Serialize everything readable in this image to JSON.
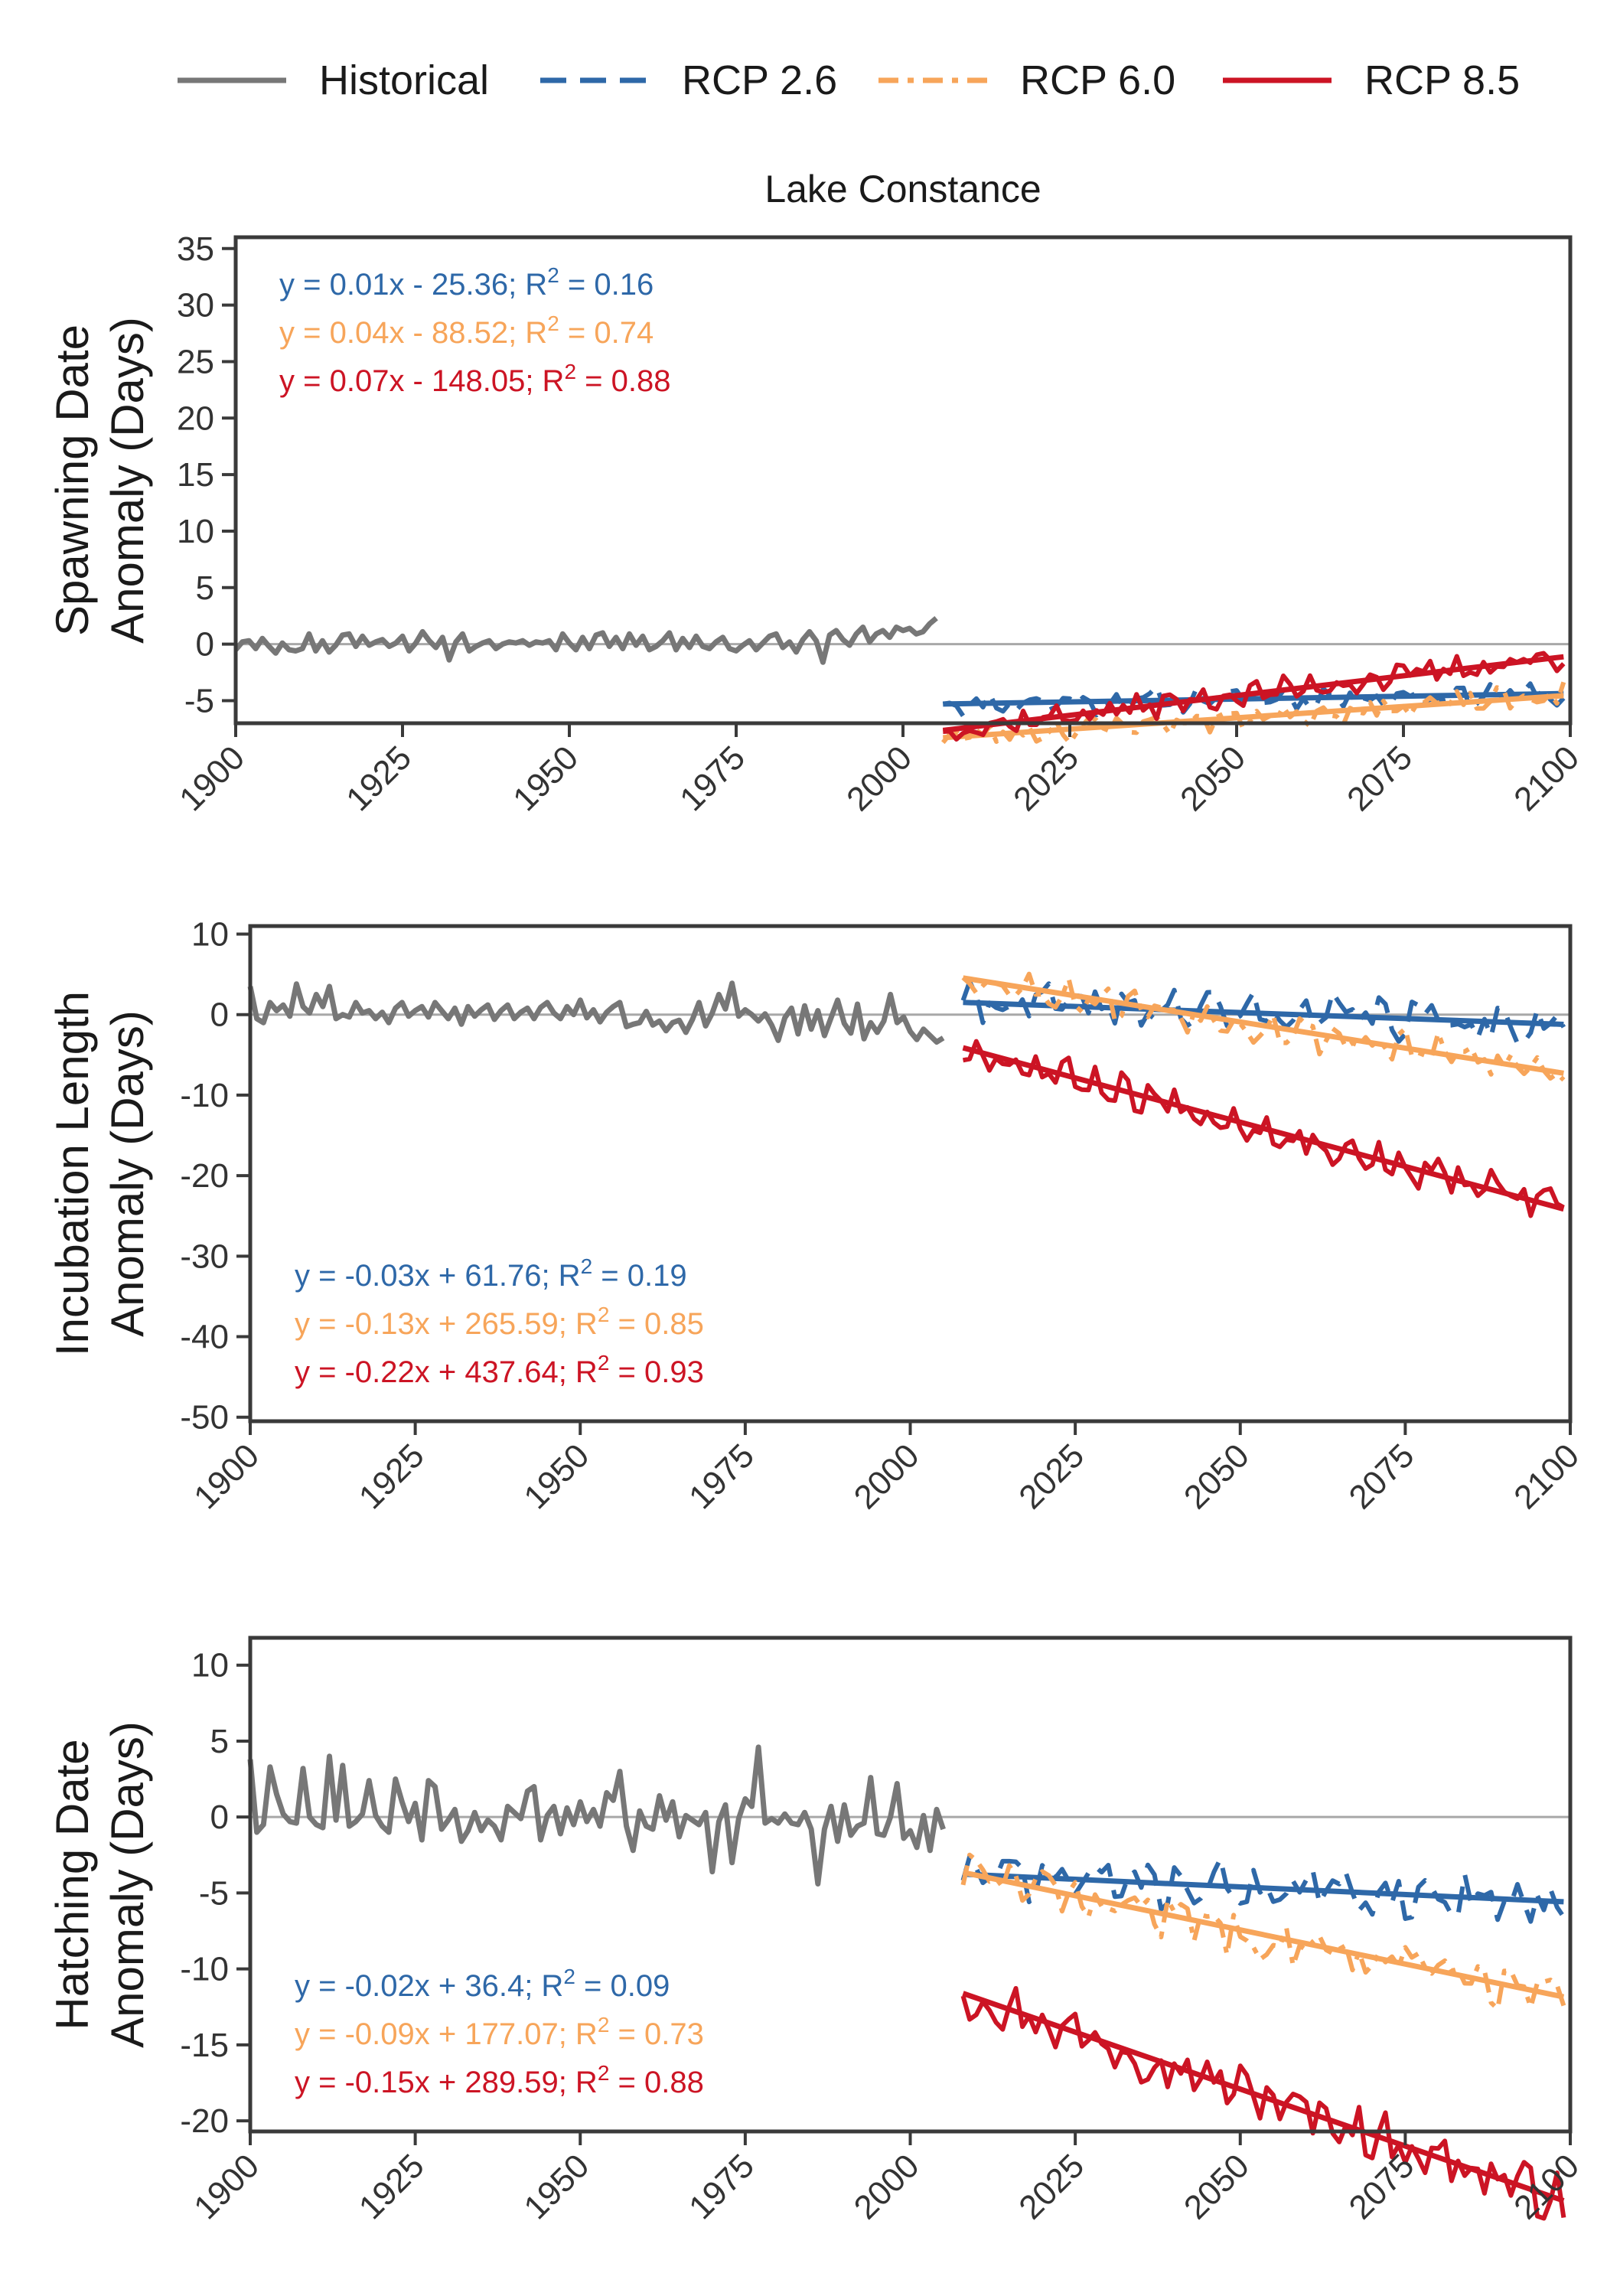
{
  "legend": [
    {
      "name": "Historical",
      "color": "#777777",
      "dash": "solid"
    },
    {
      "name": "RCP 2.6",
      "color": "#2e68a8",
      "dash": "dash"
    },
    {
      "name": "RCP 6.0",
      "color": "#f7a55a",
      "dash": "dashdot"
    },
    {
      "name": "RCP 8.5",
      "color": "#cc1424",
      "dash": "solid"
    }
  ],
  "title": "Lake Constance",
  "chart_data": [
    {
      "type": "line",
      "ylabel": "Spawning Date Anomaly (Days)",
      "ylabel_lines": [
        "Spawning Date",
        "Anomaly (Days)"
      ],
      "xlim": [
        1900,
        2100
      ],
      "ylim": [
        -7,
        36
      ],
      "yticks": [
        35,
        30,
        25,
        20,
        15,
        10,
        5,
        0,
        -5
      ],
      "xticks": [
        1900,
        1925,
        1950,
        1975,
        2000,
        2025,
        2050,
        2075,
        2100
      ],
      "historical_years": [
        1900,
        2005
      ],
      "historical_values": [
        -0.5,
        0.2,
        0.3,
        -0.4,
        0.5,
        -0.2,
        -0.8,
        0.1,
        -0.5,
        -0.6,
        -0.4,
        0.9,
        -0.6,
        0.3,
        -0.7,
        -0.1,
        0.8,
        0.9,
        -0.2,
        0.7,
        -0.1,
        0.2,
        0.4,
        -0.2,
        0.1,
        0.7,
        -0.6,
        0.1,
        1.1,
        0.3,
        -0.3,
        0.6,
        -1.4,
        0.2,
        0.9,
        -0.6,
        -0.2,
        0.1,
        0.3,
        -0.4,
        0.0,
        0.2,
        0.1,
        0.3,
        -0.1,
        0.2,
        0.1,
        0.3,
        -0.5,
        0.9,
        0.1,
        -0.5,
        0.6,
        -0.4,
        0.8,
        1.0,
        -0.2,
        0.6,
        -0.4,
        0.9,
        -0.1,
        0.7,
        -0.5,
        -0.2,
        0.3,
        1.0,
        -0.5,
        0.5,
        -0.3,
        0.7,
        -0.2,
        -0.4,
        0.2,
        0.6,
        -0.4,
        -0.6,
        -0.1,
        0.3,
        -0.5,
        0.1,
        0.7,
        0.9,
        -0.3,
        0.2,
        -0.7,
        0.4,
        1.1,
        0.3,
        -1.6,
        0.8,
        1.2,
        0.4,
        -0.1,
        0.9,
        1.5,
        0.2,
        0.9,
        1.2,
        0.6,
        1.5,
        1.2,
        1.4,
        0.9,
        1.1,
        1.8,
        2.3
      ],
      "series": [
        {
          "key": "rcp26",
          "start": 2006,
          "end": 2099,
          "slope": 0.01,
          "intercept": -25.36,
          "amp": 0.9,
          "period": 6.3,
          "seed": 11
        },
        {
          "key": "rcp60",
          "start": 2006,
          "end": 2099,
          "slope": 0.04,
          "intercept": -88.52,
          "amp": 0.9,
          "period": 5.1,
          "seed": 23
        },
        {
          "key": "rcp85",
          "start": 2006,
          "end": 2099,
          "slope": 0.07,
          "intercept": -148.05,
          "amp": 0.9,
          "period": 4.3,
          "seed": 37
        }
      ],
      "equations": [
        {
          "key": "rcp26",
          "text": "y = 0.01x - 25.36; R",
          "sup": "2",
          "tail": " = 0.16"
        },
        {
          "key": "rcp60",
          "text": "y = 0.04x - 88.52; R",
          "sup": "2",
          "tail": " = 0.74"
        },
        {
          "key": "rcp85",
          "text": "y = 0.07x - 148.05; R",
          "sup": "2",
          "tail": " = 0.88"
        }
      ]
    },
    {
      "type": "line",
      "ylabel": "Incubation Length Anomaly (Days)",
      "ylabel_lines": [
        "Incubation Length",
        "Anomaly (Days)"
      ],
      "xlim": [
        1900,
        2100
      ],
      "ylim": [
        -50.5,
        11
      ],
      "yticks": [
        10,
        0,
        -10,
        -20,
        -30,
        -40,
        -50
      ],
      "xticks": [
        1900,
        1925,
        1950,
        1975,
        2000,
        2025,
        2050,
        2075,
        2100
      ],
      "historical_years": [
        1900,
        2005
      ],
      "historical_values": [
        3.5,
        -0.5,
        -1.0,
        1.5,
        0.5,
        1.2,
        -0.2,
        3.8,
        1.0,
        0.2,
        2.5,
        1.0,
        3.5,
        -0.5,
        0.0,
        -0.3,
        1.5,
        0.2,
        0.5,
        -0.5,
        0.3,
        -1.0,
        0.8,
        1.5,
        -0.2,
        0.5,
        1.0,
        -0.3,
        1.5,
        0.5,
        -0.5,
        0.8,
        -1.2,
        1.0,
        -0.2,
        0.6,
        1.2,
        -0.6,
        0.5,
        1.2,
        -0.5,
        0.3,
        0.8,
        -0.5,
        0.9,
        1.5,
        0.2,
        -0.5,
        1.0,
        0.0,
        1.8,
        -0.4,
        0.6,
        -0.9,
        0.3,
        1.0,
        1.5,
        -1.5,
        -1.2,
        -1.0,
        0.4,
        -1.3,
        -0.8,
        -2.0,
        -1.0,
        -0.7,
        -2.2,
        -0.6,
        1.5,
        -1.4,
        0.2,
        2.5,
        0.7,
        3.9,
        -0.2,
        0.6,
        0.0,
        -0.8,
        0.1,
        -1.3,
        -3.2,
        -0.4,
        0.8,
        -2.4,
        1.1,
        -1.8,
        0.5,
        -2.6,
        -0.4,
        1.8,
        -1.1,
        -2.3,
        1.3,
        -3.0,
        -1.0,
        -2.2,
        -0.8,
        2.5,
        -1.0,
        -0.3,
        -2.1,
        -3.1,
        -1.8,
        -2.6,
        -3.4,
        -2.9
      ],
      "series": [
        {
          "key": "rcp26",
          "start": 2008,
          "end": 2099,
          "slope": -0.03,
          "intercept": 61.76,
          "amp": 2.2,
          "period": 6.3,
          "seed": 41
        },
        {
          "key": "rcp60",
          "start": 2008,
          "end": 2099,
          "slope": -0.13,
          "intercept": 265.59,
          "amp": 1.8,
          "period": 5.1,
          "seed": 53
        },
        {
          "key": "rcp85",
          "start": 2008,
          "end": 2099,
          "slope": -0.22,
          "intercept": 437.64,
          "amp": 1.8,
          "period": 4.3,
          "seed": 67
        }
      ],
      "equations": [
        {
          "key": "rcp26",
          "text": "y = -0.03x + 61.76; R",
          "sup": "2",
          "tail": " = 0.19"
        },
        {
          "key": "rcp60",
          "text": "y = -0.13x + 265.59; R",
          "sup": "2",
          "tail": " = 0.85"
        },
        {
          "key": "rcp85",
          "text": "y = -0.22x + 437.64; R",
          "sup": "2",
          "tail": " = 0.93"
        }
      ]
    },
    {
      "type": "line",
      "ylabel": "Hatching Date Anomaly (Days)",
      "ylabel_lines": [
        "Hatching Date",
        "Anomaly (Days)"
      ],
      "xlim": [
        1900,
        2100
      ],
      "ylim": [
        -20.7,
        11.8
      ],
      "yticks": [
        10,
        5,
        0,
        -5,
        -10,
        -15,
        -20
      ],
      "xticks": [
        1900,
        1925,
        1950,
        1975,
        2000,
        2025,
        2050,
        2075,
        2100
      ],
      "historical_years": [
        1900,
        2005
      ],
      "historical_values": [
        3.8,
        -1.0,
        -0.5,
        3.3,
        1.5,
        0.2,
        -0.3,
        -0.4,
        3.2,
        0.0,
        -0.5,
        -0.7,
        4.0,
        -0.2,
        3.4,
        -0.6,
        -0.3,
        0.2,
        2.4,
        0.1,
        -0.6,
        -1.0,
        2.5,
        1.0,
        -0.3,
        0.9,
        -1.5,
        2.4,
        2.0,
        -0.8,
        -0.2,
        0.5,
        -1.6,
        -0.9,
        0.3,
        -0.9,
        -0.2,
        -0.6,
        -1.5,
        0.7,
        0.3,
        -0.1,
        1.7,
        2.0,
        -1.5,
        0.1,
        0.7,
        -1.1,
        0.6,
        -0.5,
        1.0,
        -0.3,
        0.5,
        -0.6,
        1.6,
        1.1,
        3.0,
        -0.6,
        -2.2,
        0.4,
        -0.6,
        -0.8,
        1.4,
        -0.2,
        1.0,
        -1.3,
        0.1,
        -0.2,
        -0.5,
        0.3,
        -3.6,
        -0.3,
        0.8,
        -3.0,
        -0.1,
        1.2,
        0.7,
        4.6,
        -0.4,
        -0.1,
        -0.4,
        0.2,
        -0.4,
        -0.5,
        0.3,
        -0.8,
        -4.4,
        -0.8,
        0.7,
        -1.6,
        0.8,
        -1.2,
        -0.6,
        -0.4,
        2.6,
        -1.1,
        -1.2,
        0.0,
        2.2,
        -1.4,
        -0.9,
        -2.0,
        0.1,
        -2.2,
        0.5,
        -0.8
      ],
      "series": [
        {
          "key": "rcp26",
          "start": 2008,
          "end": 2099,
          "slope": -0.02,
          "intercept": 36.4,
          "amp": 1.3,
          "period": 6.3,
          "seed": 71
        },
        {
          "key": "rcp60",
          "start": 2008,
          "end": 2099,
          "slope": -0.09,
          "intercept": 177.07,
          "amp": 1.3,
          "period": 5.1,
          "seed": 83
        },
        {
          "key": "rcp85",
          "start": 2008,
          "end": 2099,
          "slope": -0.15,
          "intercept": 289.59,
          "amp": 1.3,
          "period": 4.3,
          "seed": 97
        }
      ],
      "equations": [
        {
          "key": "rcp26",
          "text": "y = -0.02x + 36.4; R",
          "sup": "2",
          "tail": " = 0.09"
        },
        {
          "key": "rcp60",
          "text": "y = -0.09x + 177.07; R",
          "sup": "2",
          "tail": " = 0.73"
        },
        {
          "key": "rcp85",
          "text": "y = -0.15x + 289.59; R",
          "sup": "2",
          "tail": " = 0.88"
        }
      ]
    }
  ]
}
